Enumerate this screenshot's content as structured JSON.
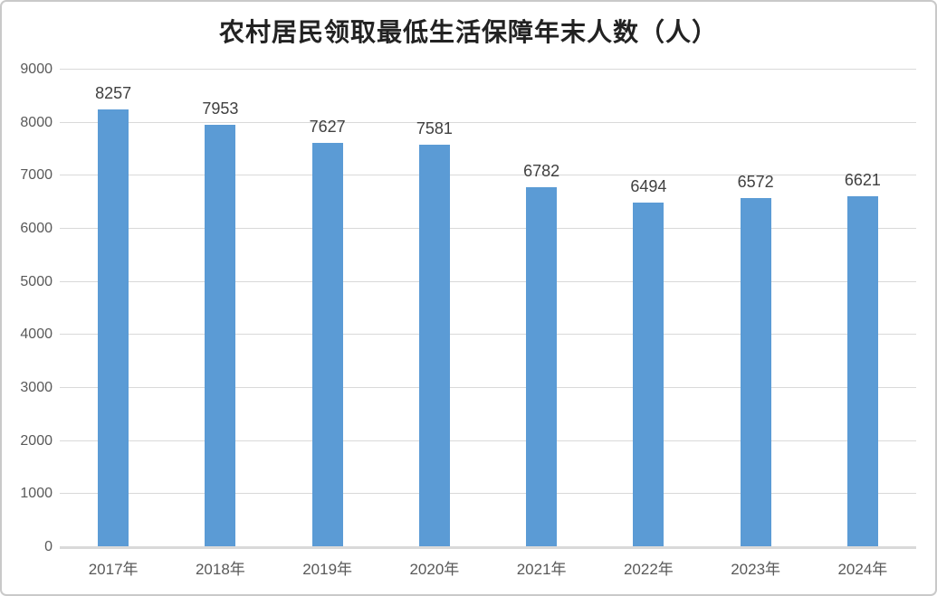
{
  "chart_data": {
    "type": "bar",
    "title": "农村居民领取最低生活保障年末人数（人）",
    "categories": [
      "2017年",
      "2018年",
      "2019年",
      "2020年",
      "2021年",
      "2022年",
      "2023年",
      "2024年"
    ],
    "values": [
      8257,
      7953,
      7627,
      7581,
      6782,
      6494,
      6572,
      6621
    ],
    "xlabel": "",
    "ylabel": "",
    "ylim": [
      0,
      9000
    ],
    "ytick_interval": 1000,
    "ytick_labels": [
      "0",
      "1000",
      "2000",
      "3000",
      "4000",
      "5000",
      "6000",
      "7000",
      "8000",
      "9000"
    ],
    "grid": true,
    "legend_position": "none",
    "data_labels_visible": true,
    "colors": {
      "bar": "#5b9bd5",
      "gridline": "#d9d9d9",
      "axis_line": "#d9d9d9",
      "title_text": "#222222",
      "tick_label_text": "#595959",
      "data_label_text": "#404040",
      "background": "#ffffff",
      "frame_border": "#c9c9c9"
    }
  }
}
